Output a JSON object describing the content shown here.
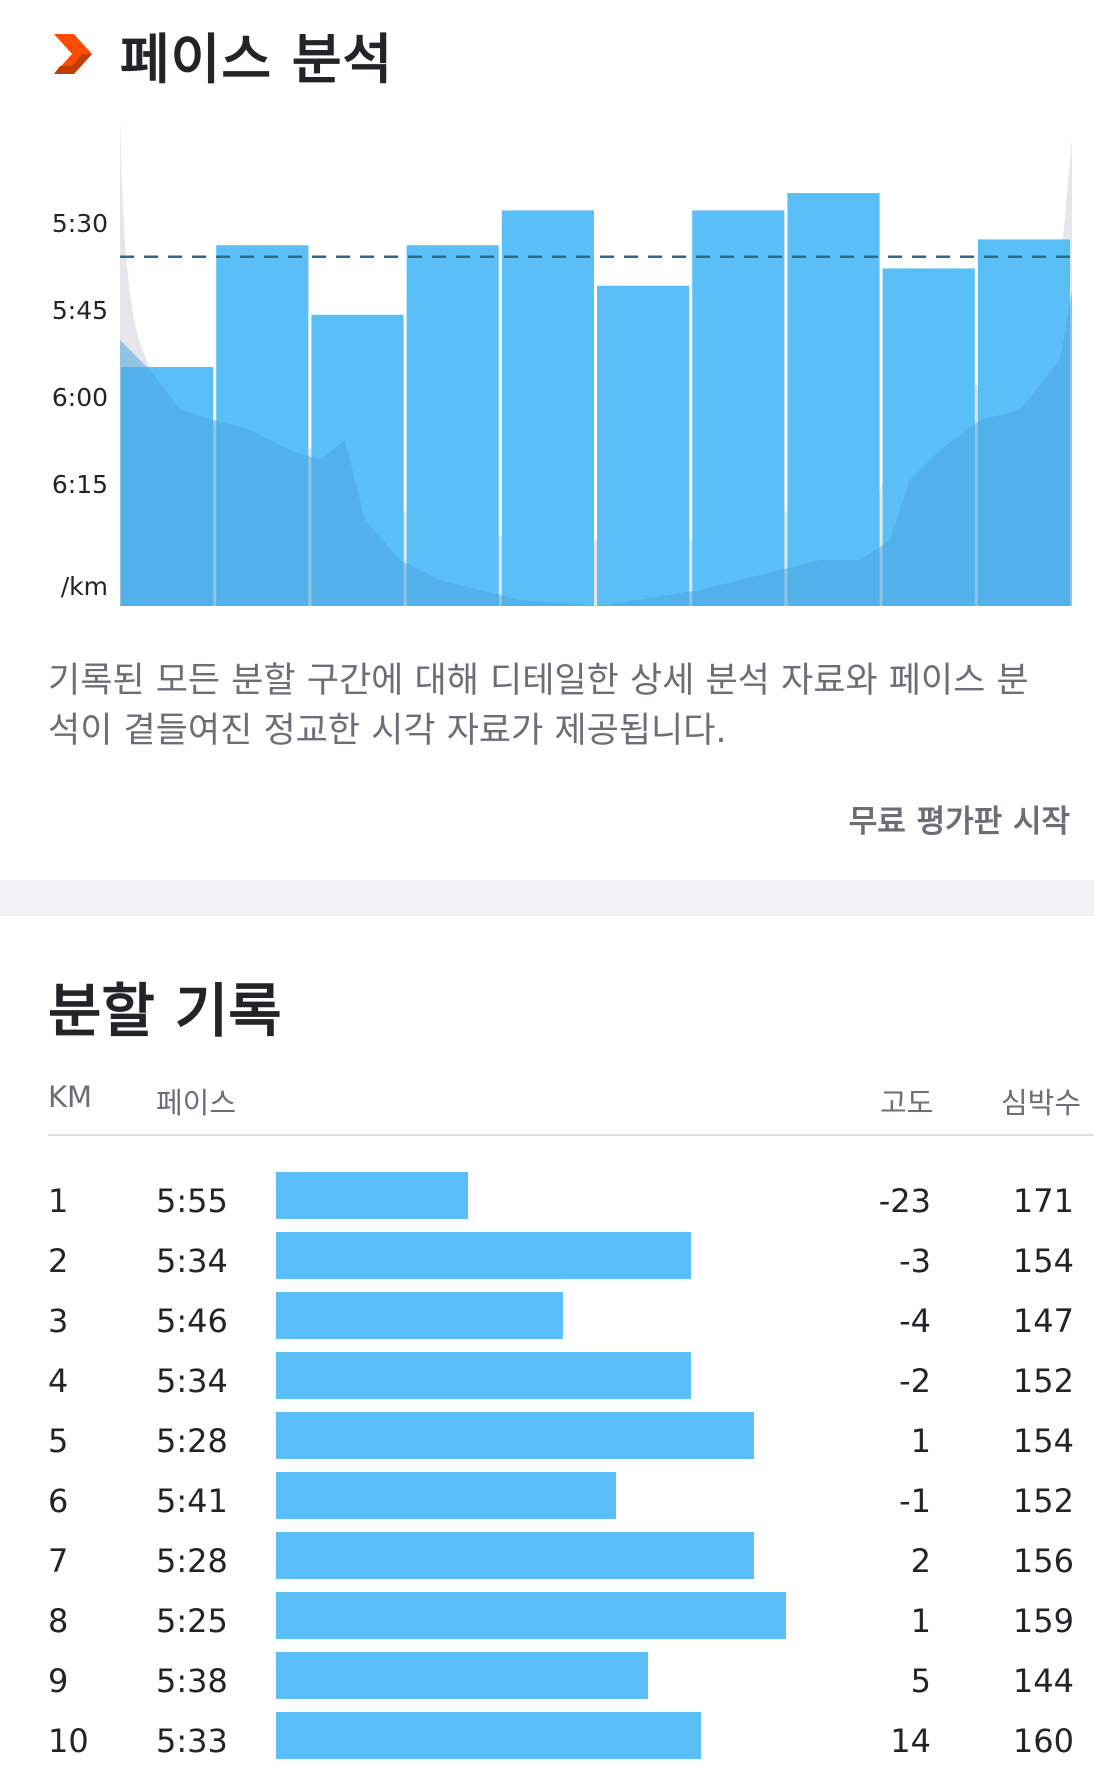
{
  "header": {
    "title": "페이스 분석",
    "icon": "chevron-right-icon"
  },
  "colors": {
    "accent": "#fc4c02",
    "bar": "#5bbff7",
    "avg_line": "#2e6a8a",
    "elevation": "#e6e6ea"
  },
  "chart_data": {
    "type": "bar",
    "categories": [
      "1",
      "2",
      "3",
      "4",
      "5",
      "6",
      "7",
      "8",
      "9",
      "10"
    ],
    "values_seconds_per_km": [
      355,
      334,
      346,
      334,
      328,
      341,
      328,
      325,
      338,
      333
    ],
    "y_ticks": [
      "5:30",
      "5:45",
      "6:00",
      "6:15"
    ],
    "y_unit": "/km",
    "average_pace_line": "5:36",
    "y_axis_inverted": true,
    "dashed_average_line": true
  },
  "description": "기록된 모든 분할 구간에 대해 디테일한 상세 분석 자료와 페이스 분석이 곁들여진 정교한 시각 자료가 제공됩니다.",
  "cta_label": "무료 평가판 시작",
  "splits": {
    "title": "분할 기록",
    "columns": {
      "km": "KM",
      "pace": "페이스",
      "elevation": "고도",
      "heart_rate": "심박수"
    },
    "rows": [
      {
        "km": "1",
        "pace": "5:55",
        "pace_sec": 355,
        "elevation": "-23",
        "heart_rate": "171"
      },
      {
        "km": "2",
        "pace": "5:34",
        "pace_sec": 334,
        "elevation": "-3",
        "heart_rate": "154"
      },
      {
        "km": "3",
        "pace": "5:46",
        "pace_sec": 346,
        "elevation": "-4",
        "heart_rate": "147"
      },
      {
        "km": "4",
        "pace": "5:34",
        "pace_sec": 334,
        "elevation": "-2",
        "heart_rate": "152"
      },
      {
        "km": "5",
        "pace": "5:28",
        "pace_sec": 328,
        "elevation": "1",
        "heart_rate": "154"
      },
      {
        "km": "6",
        "pace": "5:41",
        "pace_sec": 341,
        "elevation": "-1",
        "heart_rate": "152"
      },
      {
        "km": "7",
        "pace": "5:28",
        "pace_sec": 328,
        "elevation": "2",
        "heart_rate": "156"
      },
      {
        "km": "8",
        "pace": "5:25",
        "pace_sec": 325,
        "elevation": "1",
        "heart_rate": "159"
      },
      {
        "km": "9",
        "pace": "5:38",
        "pace_sec": 338,
        "elevation": "5",
        "heart_rate": "144"
      },
      {
        "km": "10",
        "pace": "5:33",
        "pace_sec": 333,
        "elevation": "14",
        "heart_rate": "160"
      }
    ]
  }
}
